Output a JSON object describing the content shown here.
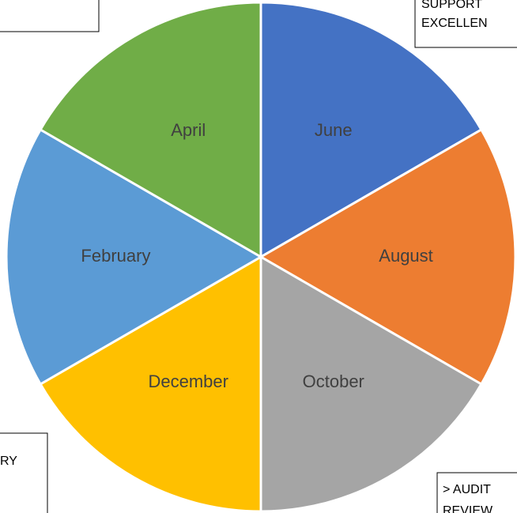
{
  "chart_data": {
    "type": "pie",
    "categories": [
      "June",
      "August",
      "October",
      "December",
      "February",
      "April"
    ],
    "values": [
      1,
      1,
      1,
      1,
      1,
      1
    ],
    "colors": [
      "#4472c4",
      "#ed7d31",
      "#a5a5a5",
      "#ffc000",
      "#5b9bd5",
      "#70ad47"
    ],
    "annotations": [
      {
        "lines": [
          "SUPPORT",
          "EXCELLEN"
        ]
      },
      {
        "lines": [
          "RY"
        ]
      },
      {
        "lines": [
          "> AUDIT",
          "REVIEW"
        ]
      }
    ]
  }
}
